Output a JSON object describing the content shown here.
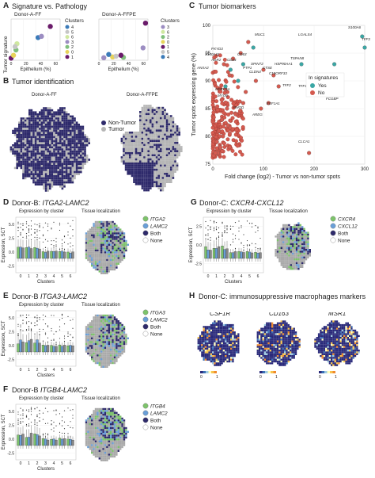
{
  "panel_a": {
    "letter": "A",
    "title": "Signature vs. Pathology",
    "left_title": "Donor-A-FF",
    "right_title": "Donor-A-FFPE",
    "ylabel": "Tumor signature",
    "xlabel": "Epithelium (%)",
    "legend_title": "Clusters",
    "left_legend": [
      "4",
      "5",
      "6",
      "3",
      "2",
      "0",
      "1"
    ],
    "right_legend": [
      "3",
      "6",
      "2",
      "0",
      "1",
      "5",
      "4"
    ],
    "left_xticks": [
      "0",
      "20",
      "40",
      "60"
    ],
    "right_xticks": [
      "0",
      "20",
      "40",
      "60"
    ],
    "colors": {
      "c0": "#e7d35a",
      "c1": "#6a1b6a",
      "c2": "#7fbf7b",
      "c3": "#9c8dc2",
      "c4": "#3b7bb9",
      "c5": "#c6c6c6",
      "c6": "#cfe8a0"
    }
  },
  "panel_b": {
    "letter": "B",
    "title": "Tumor identification",
    "left_title": "Donor-A-FF",
    "right_title": "Donor-A-FFPE",
    "legend": [
      {
        "label": "Non-Tumor",
        "color": "#2e2a6b"
      },
      {
        "label": "Tumor",
        "color": "#b5b5b5"
      }
    ]
  },
  "panel_c": {
    "letter": "C",
    "title": "Tumor biomarkers",
    "ylabel": "Tumor spots expressing gene (%)",
    "xlabel": "Fold change (log2) - Tumor vs non-tumor spots",
    "legend_title": "In signatures",
    "legend": [
      {
        "label": "Yes",
        "color": "#3aa7a5"
      },
      {
        "label": "No",
        "color": "#d45a4f"
      }
    ],
    "genes": [
      "MUC1",
      "LGALS4",
      "TFF3",
      "S100A6",
      "PXYD3",
      "CD63",
      "TSPAN8",
      "S100A11",
      "AGR2",
      "CD24",
      "ANXA2",
      "SPINT2",
      "HSP90AA1",
      "PTP1",
      "CTSE",
      "CLDN4",
      "C19ORF33",
      "EEF1A1",
      "FCGBP",
      "TFF1",
      "TFF2",
      "AREG",
      "RHOD",
      "GPRC5A",
      "MYO6",
      "CLCA1"
    ]
  },
  "chart_data": {
    "type": "scatter",
    "title": "Tumor biomarkers",
    "xlabel": "Fold change (log2) - Tumor vs non-tumor spots",
    "ylabel": "Tumor spots expressing gene (%)",
    "xlim": [
      0,
      300
    ],
    "ylim": [
      75,
      100
    ],
    "xticks": [
      "0",
      "100",
      "200",
      "300"
    ],
    "yticks": [
      "75",
      "80",
      "85",
      "90",
      "95",
      "100"
    ],
    "series": [
      {
        "name": "Yes",
        "points": [
          [
            295,
            98
          ],
          [
            300,
            96
          ],
          [
            240,
            93
          ],
          [
            175,
            93
          ],
          [
            80,
            96
          ],
          [
            60,
            93
          ],
          [
            35,
            92
          ],
          [
            50,
            90
          ],
          [
            25,
            89
          ]
        ]
      },
      {
        "name": "No",
        "points": [
          [
            190,
            77
          ],
          [
            110,
            86
          ],
          [
            95,
            85
          ],
          [
            130,
            89
          ],
          [
            60,
            86
          ],
          [
            45,
            84
          ],
          [
            30,
            82
          ],
          [
            20,
            80
          ],
          [
            15,
            78
          ],
          [
            10,
            77
          ],
          [
            70,
            97
          ],
          [
            55,
            95
          ],
          [
            40,
            94
          ],
          [
            100,
            92
          ],
          [
            120,
            91
          ],
          [
            85,
            90
          ],
          [
            65,
            88
          ],
          [
            28,
            85
          ],
          [
            18,
            83
          ],
          [
            12,
            81
          ],
          [
            8,
            79
          ],
          [
            5,
            77
          ],
          [
            22,
            93
          ],
          [
            33,
            91
          ]
        ]
      }
    ]
  },
  "panel_d": {
    "letter": "D",
    "title_prefix": "Donor-B: ",
    "title_gene": "ITGA2-LAMC2",
    "sub1": "Expression by cluster",
    "sub2": "Tissue localization",
    "legend": [
      "ITGA2",
      "LAMC2",
      "Both",
      "None"
    ]
  },
  "panel_e": {
    "letter": "E",
    "title_prefix": "Donor-B ",
    "title_gene": "ITGA3-LAMC2",
    "sub1": "Expression by cluster",
    "sub2": "Tissue localization",
    "legend": [
      "ITGA3",
      "LAMC2",
      "Both",
      "None"
    ]
  },
  "panel_f": {
    "letter": "F",
    "title_prefix": "Donor-B ",
    "title_gene": "ITGB4-LAMC2",
    "sub1": "Expression by cluster",
    "sub2": "Tissue localization",
    "legend": [
      "ITGB4",
      "LAMC2",
      "Both",
      "None"
    ]
  },
  "panel_g": {
    "letter": "G",
    "title_prefix": "Donor-C: ",
    "title_gene": "CXCR4-CXCL12",
    "sub1": "Expression by cluster",
    "sub2": "Tissue localization",
    "legend": [
      "CXCR4",
      "CXCL12",
      "Both",
      "None"
    ]
  },
  "panel_h": {
    "letter": "H",
    "title": "Donor-C: immunosuppressive macrophages markers",
    "genes": [
      "CSF1R",
      "CD163",
      "MSR1"
    ],
    "scale_min": "0",
    "scale_max": "1"
  },
  "box_axes": {
    "ylabel": "Expression, SCT",
    "xlabel": "Clusters",
    "xticks": [
      "0",
      "1",
      "2",
      "3",
      "4",
      "5",
      "6"
    ],
    "yticks_d": [
      "-2.5",
      "0.0",
      "2.5",
      "5.0"
    ],
    "yticks_g": [
      "-2.5",
      "0.0",
      "2.5"
    ]
  },
  "colors": {
    "gene1": "#7dc36b",
    "gene2": "#6a9fd8",
    "both": "#2e2a6b",
    "none": "#ffffff",
    "tissue_bg": "#a9a9a9"
  }
}
